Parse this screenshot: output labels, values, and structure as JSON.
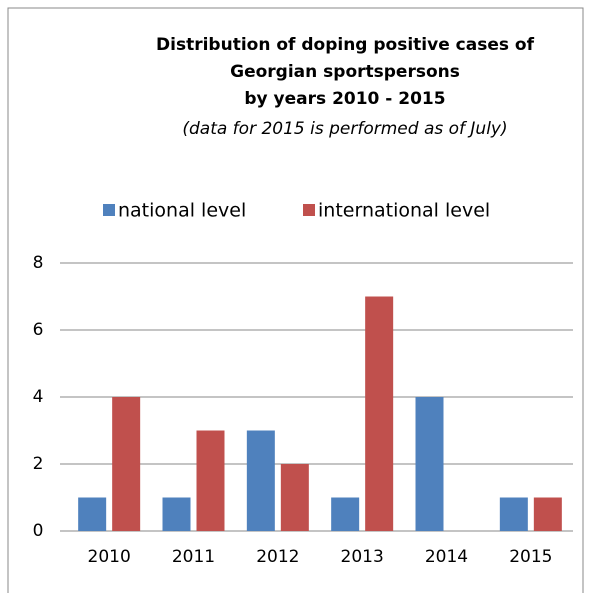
{
  "chart_data": {
    "type": "bar",
    "title": [
      "Distribution of doping positive cases of",
      "Georgian sportspersons",
      "by years 2010 - 2015"
    ],
    "subtitle": "(data for 2015 is performed as of July)",
    "categories": [
      "2010",
      "2011",
      "2012",
      "2013",
      "2014",
      "2015"
    ],
    "series": [
      {
        "name": "national level",
        "color": "#4f81bd",
        "values": [
          1,
          1,
          3,
          1,
          4,
          1
        ]
      },
      {
        "name": "international level",
        "color": "#c0504d",
        "values": [
          4,
          3,
          2,
          7,
          0,
          1
        ]
      }
    ],
    "ylim": [
      0,
      8
    ],
    "yticks": [
      0,
      2,
      4,
      6,
      8
    ],
    "grid": true,
    "legend": "top"
  }
}
